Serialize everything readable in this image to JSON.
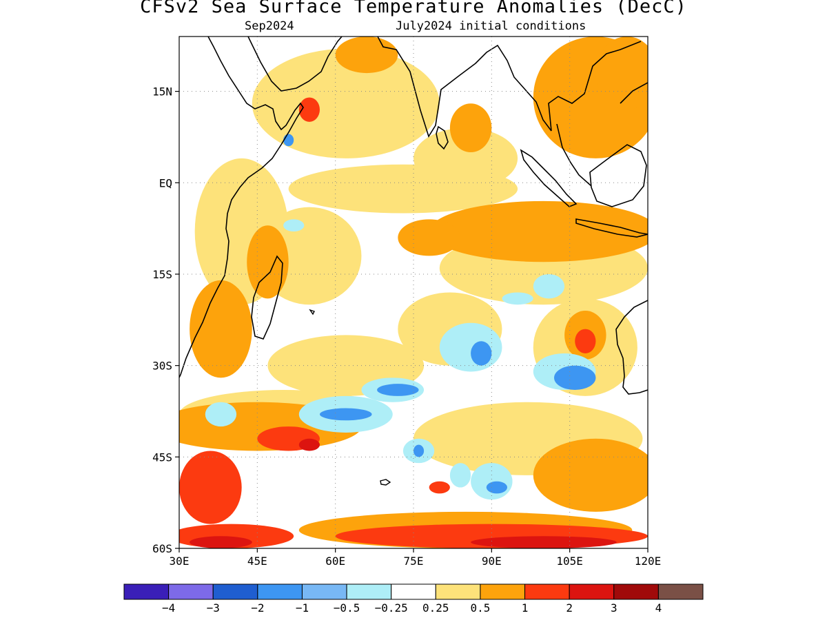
{
  "title": "CFSv2 Sea Surface Temperature Anomalies (DecC)",
  "subtitle_left": "Sep2024",
  "subtitle_right": "July2024 initial conditions",
  "map": {
    "lon_range": [
      30,
      120
    ],
    "lat_range": [
      -60,
      24
    ],
    "lat_labels": [
      {
        "lat": 15,
        "text": "15N"
      },
      {
        "lat": 0,
        "text": "EQ"
      },
      {
        "lat": -15,
        "text": "15S"
      },
      {
        "lat": -30,
        "text": "30S"
      },
      {
        "lat": -45,
        "text": "45S"
      },
      {
        "lat": -60,
        "text": "60S"
      }
    ],
    "lon_labels": [
      {
        "lon": 30,
        "text": "30E"
      },
      {
        "lon": 45,
        "text": "45E"
      },
      {
        "lon": 60,
        "text": "60E"
      },
      {
        "lon": 75,
        "text": "75E"
      },
      {
        "lon": 90,
        "text": "90E"
      },
      {
        "lon": 105,
        "text": "105E"
      },
      {
        "lon": 120,
        "text": "120E"
      }
    ],
    "gridlines": "dotted"
  },
  "colorbar": {
    "colors": [
      "#3a1fb8",
      "#7d6ae8",
      "#1f5ed0",
      "#3d96f2",
      "#78b8f5",
      "#aeeef7",
      "#ffffff",
      "#fde27a",
      "#fda30c",
      "#fc3a10",
      "#dc1410",
      "#a00a0a",
      "#7a5046"
    ],
    "labels": [
      "−4",
      "−3",
      "−2",
      "−1",
      "−0.5",
      "−0.25",
      "0.25",
      "0.5",
      "1",
      "2",
      "3",
      "4"
    ]
  },
  "anomaly_regions": {
    "lightorange": [
      {
        "lon": 62,
        "lat": 13,
        "rx": 18,
        "ry": 9
      },
      {
        "lon": 73,
        "lat": -1,
        "rx": 22,
        "ry": 4
      },
      {
        "lon": 85,
        "lat": 4,
        "rx": 10,
        "ry": 5
      },
      {
        "lon": 42,
        "lat": -8,
        "rx": 9,
        "ry": 12
      },
      {
        "lon": 55,
        "lat": -12,
        "rx": 10,
        "ry": 8
      },
      {
        "lon": 62,
        "lat": -30,
        "rx": 15,
        "ry": 5
      },
      {
        "lon": 82,
        "lat": -24,
        "rx": 10,
        "ry": 6
      },
      {
        "lon": 108,
        "lat": -27,
        "rx": 10,
        "ry": 8
      },
      {
        "lon": 97,
        "lat": -42,
        "rx": 22,
        "ry": 6
      },
      {
        "lon": 50,
        "lat": -38,
        "rx": 20,
        "ry": 4
      },
      {
        "lon": 100,
        "lat": -14,
        "rx": 20,
        "ry": 6
      }
    ],
    "orange": [
      {
        "lon": 100,
        "lat": -8,
        "rx": 22,
        "ry": 5
      },
      {
        "lon": 78,
        "lat": -9,
        "rx": 6,
        "ry": 3
      },
      {
        "lon": 66,
        "lat": 21,
        "rx": 6,
        "ry": 3
      },
      {
        "lon": 110,
        "lat": 14,
        "rx": 12,
        "ry": 10
      },
      {
        "lon": 116,
        "lat": 18,
        "rx": 6,
        "ry": 6
      },
      {
        "lon": 38,
        "lat": -24,
        "rx": 6,
        "ry": 8
      },
      {
        "lon": 47,
        "lat": -13,
        "rx": 4,
        "ry": 6
      },
      {
        "lon": 45,
        "lat": -40,
        "rx": 20,
        "ry": 4
      },
      {
        "lon": 85,
        "lat": -57,
        "rx": 32,
        "ry": 3
      },
      {
        "lon": 110,
        "lat": -48,
        "rx": 12,
        "ry": 6
      },
      {
        "lon": 108,
        "lat": -25,
        "rx": 4,
        "ry": 4
      },
      {
        "lon": 86,
        "lat": 9,
        "rx": 4,
        "ry": 4
      }
    ],
    "red": [
      {
        "lon": 55,
        "lat": 12,
        "rx": 2,
        "ry": 2
      },
      {
        "lon": 108,
        "lat": -26,
        "rx": 2,
        "ry": 2
      },
      {
        "lon": 51,
        "lat": -42,
        "rx": 6,
        "ry": 2
      },
      {
        "lon": 36,
        "lat": -50,
        "rx": 6,
        "ry": 6
      },
      {
        "lon": 80,
        "lat": -50,
        "rx": 2,
        "ry": 1
      },
      {
        "lon": 90,
        "lat": -58,
        "rx": 30,
        "ry": 2
      },
      {
        "lon": 40,
        "lat": -58,
        "rx": 12,
        "ry": 2
      }
    ],
    "darkred": [
      {
        "lon": 55,
        "lat": -43,
        "rx": 2,
        "ry": 1
      },
      {
        "lon": 38,
        "lat": -59,
        "rx": 6,
        "ry": 1
      },
      {
        "lon": 100,
        "lat": -59,
        "rx": 14,
        "ry": 1
      }
    ],
    "lightblue": [
      {
        "lon": 38,
        "lat": -38,
        "rx": 3,
        "ry": 2
      },
      {
        "lon": 62,
        "lat": -38,
        "rx": 9,
        "ry": 3
      },
      {
        "lon": 71,
        "lat": -34,
        "rx": 6,
        "ry": 2
      },
      {
        "lon": 86,
        "lat": -27,
        "rx": 6,
        "ry": 4
      },
      {
        "lon": 90,
        "lat": -49,
        "rx": 4,
        "ry": 3
      },
      {
        "lon": 76,
        "lat": -44,
        "rx": 3,
        "ry": 2
      },
      {
        "lon": 104,
        "lat": -31,
        "rx": 6,
        "ry": 3
      },
      {
        "lon": 84,
        "lat": -48,
        "rx": 2,
        "ry": 2
      },
      {
        "lon": 95,
        "lat": -19,
        "rx": 3,
        "ry": 1
      },
      {
        "lon": 101,
        "lat": -17,
        "rx": 3,
        "ry": 2
      },
      {
        "lon": 52,
        "lat": -7,
        "rx": 2,
        "ry": 1
      }
    ],
    "blue": [
      {
        "lon": 62,
        "lat": -38,
        "rx": 5,
        "ry": 1
      },
      {
        "lon": 72,
        "lat": -34,
        "rx": 4,
        "ry": 1
      },
      {
        "lon": 88,
        "lat": -28,
        "rx": 2,
        "ry": 2
      },
      {
        "lon": 106,
        "lat": -32,
        "rx": 4,
        "ry": 2
      },
      {
        "lon": 76,
        "lat": -44,
        "rx": 1,
        "ry": 1
      },
      {
        "lon": 91,
        "lat": -50,
        "rx": 2,
        "ry": 1
      },
      {
        "lon": 51,
        "lat": 7,
        "rx": 1,
        "ry": 1
      }
    ]
  }
}
